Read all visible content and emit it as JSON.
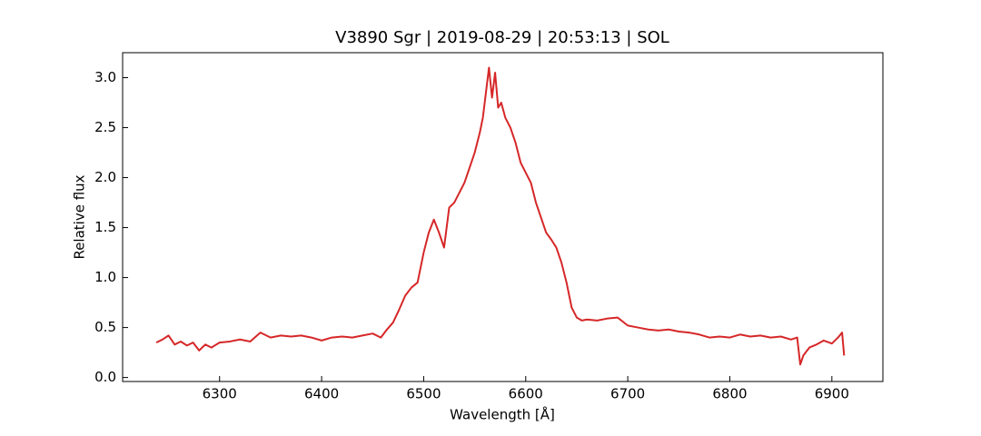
{
  "chart_data": {
    "type": "line",
    "title": "V3890 Sgr | 2019-08-29 | 20:53:13 | SOL",
    "xlabel": "Wavelength [Å]",
    "ylabel": "Relative flux",
    "color": "#d62728",
    "xlim": [
      6205,
      6950
    ],
    "ylim": [
      -0.04,
      3.25
    ],
    "xticks": [
      6300,
      6400,
      6500,
      6600,
      6700,
      6800,
      6900
    ],
    "yticks": [
      {
        "value": 0,
        "label": "0.0"
      },
      0.5,
      {
        "value": 1,
        "label": "1.0"
      },
      1.5,
      {
        "value": 2,
        "label": "2.0"
      },
      2.5,
      {
        "value": 3,
        "label": "3.0"
      }
    ],
    "x": [
      6238,
      6244,
      6250,
      6256,
      6262,
      6268,
      6274,
      6280,
      6286,
      6292,
      6300,
      6310,
      6320,
      6330,
      6340,
      6350,
      6360,
      6370,
      6380,
      6390,
      6400,
      6410,
      6420,
      6430,
      6440,
      6450,
      6458,
      6464,
      6470,
      6476,
      6482,
      6488,
      6494,
      6500,
      6505,
      6510,
      6515,
      6520,
      6525,
      6530,
      6535,
      6540,
      6545,
      6550,
      6555,
      6558,
      6561,
      6564,
      6567,
      6570,
      6573,
      6576,
      6580,
      6585,
      6590,
      6595,
      6600,
      6605,
      6610,
      6615,
      6620,
      6625,
      6630,
      6635,
      6640,
      6645,
      6650,
      6655,
      6660,
      6670,
      6680,
      6690,
      6700,
      6710,
      6720,
      6730,
      6740,
      6750,
      6760,
      6770,
      6780,
      6790,
      6800,
      6810,
      6820,
      6830,
      6840,
      6850,
      6860,
      6866,
      6869,
      6872,
      6878,
      6885,
      6892,
      6900,
      6906,
      6910,
      6912
    ],
    "values": [
      0.35,
      0.38,
      0.42,
      0.33,
      0.36,
      0.32,
      0.35,
      0.27,
      0.33,
      0.3,
      0.35,
      0.36,
      0.38,
      0.36,
      0.45,
      0.4,
      0.42,
      0.41,
      0.42,
      0.4,
      0.37,
      0.4,
      0.41,
      0.4,
      0.42,
      0.44,
      0.4,
      0.48,
      0.55,
      0.68,
      0.82,
      0.9,
      0.95,
      1.25,
      1.45,
      1.58,
      1.45,
      1.3,
      1.7,
      1.75,
      1.85,
      1.95,
      2.1,
      2.25,
      2.45,
      2.6,
      2.85,
      3.1,
      2.8,
      3.05,
      2.7,
      2.75,
      2.6,
      2.5,
      2.35,
      2.15,
      2.05,
      1.95,
      1.75,
      1.6,
      1.45,
      1.38,
      1.3,
      1.15,
      0.95,
      0.7,
      0.6,
      0.57,
      0.58,
      0.57,
      0.59,
      0.6,
      0.52,
      0.5,
      0.48,
      0.47,
      0.48,
      0.46,
      0.45,
      0.43,
      0.4,
      0.41,
      0.4,
      0.43,
      0.41,
      0.42,
      0.4,
      0.41,
      0.38,
      0.4,
      0.13,
      0.22,
      0.3,
      0.33,
      0.37,
      0.34,
      0.4,
      0.45,
      0.22
    ]
  }
}
